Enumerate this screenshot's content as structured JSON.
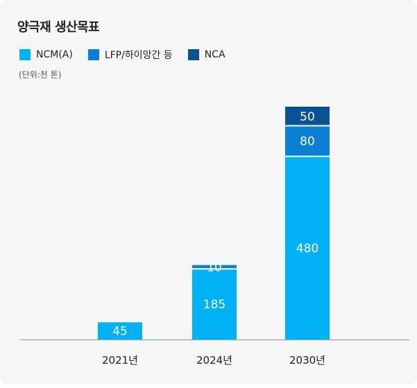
{
  "chart_data": {
    "type": "bar",
    "stacked": true,
    "title": "양극재 생산목표",
    "unit_note": "(단위:천 톤)",
    "categories": [
      "2021년",
      "2024년",
      "2030년"
    ],
    "series": [
      {
        "name": "NCM(A)",
        "color": "#00b2f5",
        "values": [
          45,
          185,
          480
        ]
      },
      {
        "name": "LFP/하이망간 등",
        "color": "#0a7fd3",
        "values": [
          0,
          10,
          80
        ]
      },
      {
        "name": "NCA",
        "color": "#0a5393",
        "values": [
          0,
          0,
          50
        ]
      }
    ],
    "data_labels": [
      [
        "45",
        "185",
        "480"
      ],
      [
        "",
        "10",
        "80"
      ],
      [
        "",
        "",
        "50"
      ]
    ],
    "ylim": [
      0,
      610
    ],
    "grid": false,
    "legend_position": "top-left"
  }
}
